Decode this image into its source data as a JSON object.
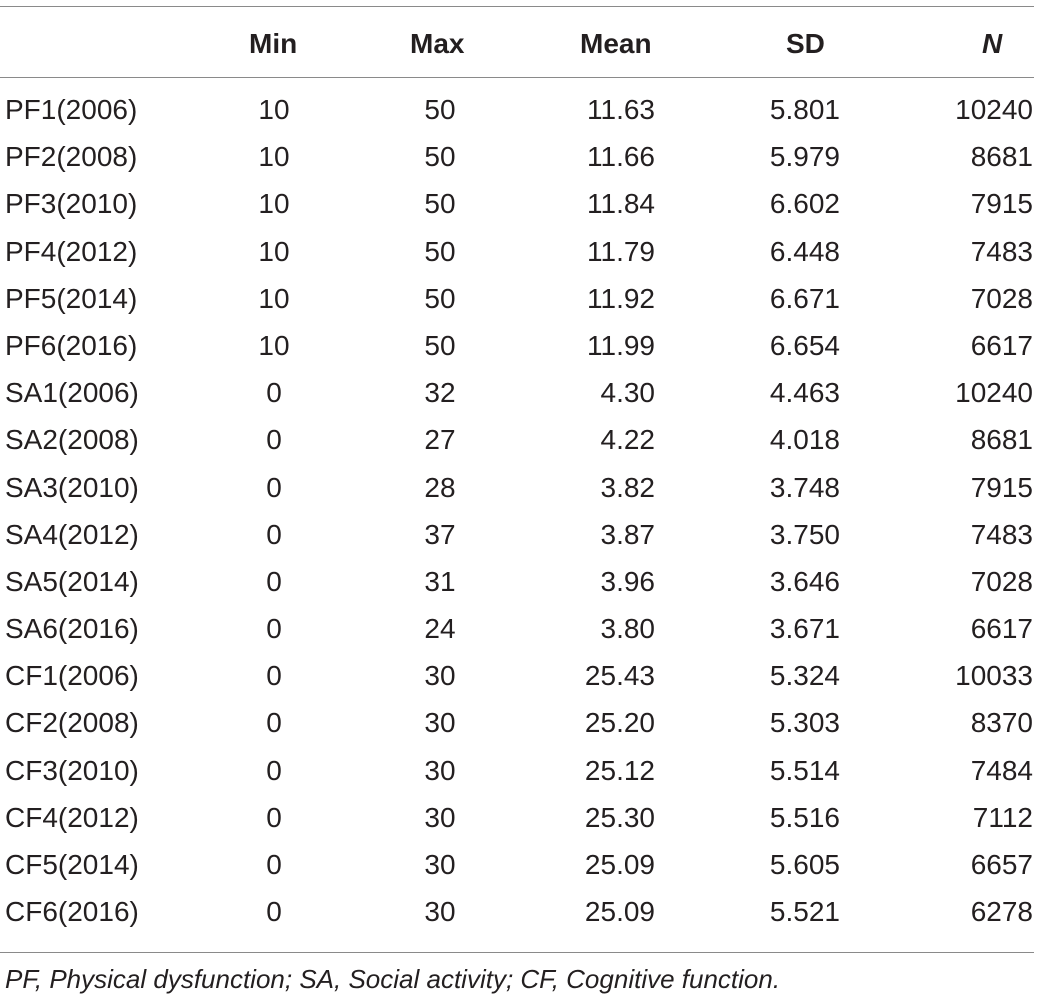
{
  "table": {
    "headers": {
      "label": "",
      "min": "Min",
      "max": "Max",
      "mean": "Mean",
      "sd": "SD",
      "n": "N"
    },
    "rows": [
      {
        "label": "PF1(2006)",
        "min": "10",
        "max": "50",
        "mean": "11.63",
        "sd": "5.801",
        "n": "10240"
      },
      {
        "label": "PF2(2008)",
        "min": "10",
        "max": "50",
        "mean": "11.66",
        "sd": "5.979",
        "n": "8681"
      },
      {
        "label": "PF3(2010)",
        "min": "10",
        "max": "50",
        "mean": "11.84",
        "sd": "6.602",
        "n": "7915"
      },
      {
        "label": "PF4(2012)",
        "min": "10",
        "max": "50",
        "mean": "11.79",
        "sd": "6.448",
        "n": "7483"
      },
      {
        "label": "PF5(2014)",
        "min": "10",
        "max": "50",
        "mean": "11.92",
        "sd": "6.671",
        "n": "7028"
      },
      {
        "label": "PF6(2016)",
        "min": "10",
        "max": "50",
        "mean": "11.99",
        "sd": "6.654",
        "n": "6617"
      },
      {
        "label": "SA1(2006)",
        "min": "0",
        "max": "32",
        "mean": "4.30",
        "sd": "4.463",
        "n": "10240"
      },
      {
        "label": "SA2(2008)",
        "min": "0",
        "max": "27",
        "mean": "4.22",
        "sd": "4.018",
        "n": "8681"
      },
      {
        "label": "SA3(2010)",
        "min": "0",
        "max": "28",
        "mean": "3.82",
        "sd": "3.748",
        "n": "7915"
      },
      {
        "label": "SA4(2012)",
        "min": "0",
        "max": "37",
        "mean": "3.87",
        "sd": "3.750",
        "n": "7483"
      },
      {
        "label": "SA5(2014)",
        "min": "0",
        "max": "31",
        "mean": "3.96",
        "sd": "3.646",
        "n": "7028"
      },
      {
        "label": "SA6(2016)",
        "min": "0",
        "max": "24",
        "mean": "3.80",
        "sd": "3.671",
        "n": "6617"
      },
      {
        "label": "CF1(2006)",
        "min": "0",
        "max": "30",
        "mean": "25.43",
        "sd": "5.324",
        "n": "10033"
      },
      {
        "label": "CF2(2008)",
        "min": "0",
        "max": "30",
        "mean": "25.20",
        "sd": "5.303",
        "n": "8370"
      },
      {
        "label": "CF3(2010)",
        "min": "0",
        "max": "30",
        "mean": "25.12",
        "sd": "5.514",
        "n": "7484"
      },
      {
        "label": "CF4(2012)",
        "min": "0",
        "max": "30",
        "mean": "25.30",
        "sd": "5.516",
        "n": "7112"
      },
      {
        "label": "CF5(2014)",
        "min": "0",
        "max": "30",
        "mean": "25.09",
        "sd": "5.605",
        "n": "6657"
      },
      {
        "label": "CF6(2016)",
        "min": "0",
        "max": "30",
        "mean": "25.09",
        "sd": "5.521",
        "n": "6278"
      }
    ],
    "footnote": "PF, Physical dysfunction; SA, Social activity; CF, Cognitive function."
  }
}
